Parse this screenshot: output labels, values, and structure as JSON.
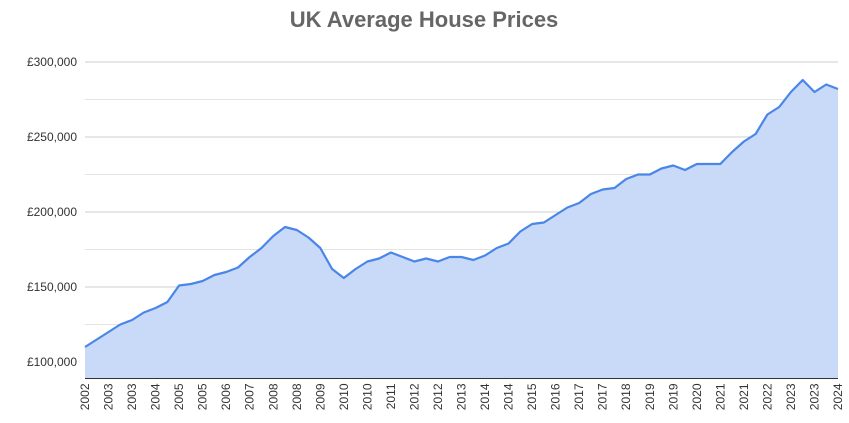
{
  "chart_data": {
    "type": "area",
    "title": "UK Average House Prices",
    "categories": [
      "2002",
      null,
      "2003",
      null,
      "2003",
      null,
      "2004",
      null,
      "2005",
      null,
      "2005",
      null,
      "2006",
      null,
      "2007",
      null,
      "2008",
      null,
      "2008",
      null,
      "2009",
      null,
      "2010",
      null,
      "2010",
      null,
      "2011",
      null,
      "2012",
      null,
      "2012",
      null,
      "2013",
      null,
      "2014",
      null,
      "2014",
      null,
      "2015",
      null,
      "2016",
      null,
      "2017",
      null,
      "2017",
      null,
      "2018",
      null,
      "2019",
      null,
      "2019",
      null,
      "2020",
      null,
      "2021",
      null,
      "2021",
      null,
      "2022",
      null,
      "2023",
      null,
      "2023",
      null,
      "2024"
    ],
    "values": [
      110000,
      115000,
      120000,
      125000,
      128000,
      133000,
      136000,
      140000,
      151000,
      152000,
      154000,
      158000,
      160000,
      163000,
      170000,
      176000,
      184000,
      190000,
      188000,
      183000,
      176000,
      162000,
      156000,
      162000,
      167000,
      169000,
      173000,
      170000,
      167000,
      169000,
      167000,
      170000,
      170000,
      168000,
      171000,
      176000,
      179000,
      187000,
      192000,
      193000,
      198000,
      203000,
      206000,
      212000,
      215000,
      216000,
      222000,
      225000,
      225000,
      229000,
      231000,
      228000,
      232000,
      232000,
      232000,
      240000,
      247000,
      252000,
      265000,
      270000,
      280000,
      288000,
      280000,
      285000,
      282000
    ],
    "line_color": "#4a86e8",
    "fill_color": "#c9daf8",
    "ylim": [
      89000,
      305000
    ],
    "yticks": [
      {
        "value": 100000,
        "label": "£100,000"
      },
      {
        "value": 150000,
        "label": "£150,000"
      },
      {
        "value": 200000,
        "label": "£200,000"
      },
      {
        "value": 250000,
        "label": "£250,000"
      },
      {
        "value": 300000,
        "label": "£300,000"
      }
    ],
    "minor_grid": [
      125000,
      175000,
      225000,
      275000
    ],
    "grid": true
  }
}
